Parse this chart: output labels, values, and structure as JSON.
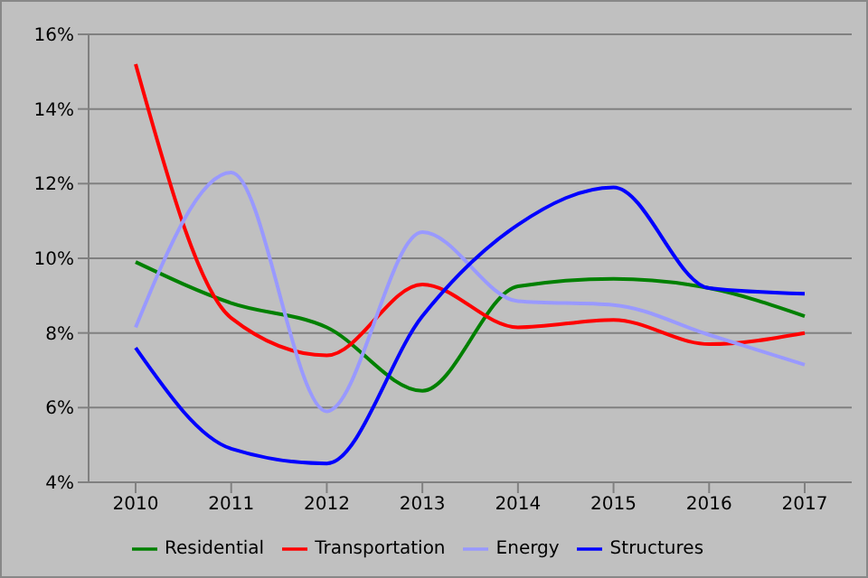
{
  "chart_data": {
    "type": "line",
    "categories": [
      "2010",
      "2011",
      "2012",
      "2013",
      "2014",
      "2015",
      "2016",
      "2017"
    ],
    "series": [
      {
        "name": "Residential",
        "color": "#008000",
        "values": [
          9.9,
          8.8,
          8.15,
          6.45,
          9.25,
          9.45,
          9.2,
          8.45
        ]
      },
      {
        "name": "Transportation",
        "color": "#ff0000",
        "values": [
          15.2,
          8.4,
          7.4,
          9.3,
          8.15,
          8.35,
          7.7,
          8.0
        ]
      },
      {
        "name": "Energy",
        "color": "#9999ff",
        "values": [
          8.15,
          12.3,
          5.9,
          10.7,
          8.85,
          8.75,
          7.95,
          7.15
        ]
      },
      {
        "name": "Structures",
        "color": "#0000ff",
        "values": [
          7.6,
          4.9,
          4.5,
          8.45,
          10.9,
          11.9,
          9.2,
          9.05
        ]
      }
    ],
    "ylim": [
      4,
      16
    ],
    "yticks": [
      {
        "value": 4,
        "label": "4%"
      },
      {
        "value": 6,
        "label": "6%"
      },
      {
        "value": 8,
        "label": "8%"
      },
      {
        "value": 10,
        "label": "10%"
      },
      {
        "value": 12,
        "label": "12%"
      },
      {
        "value": 14,
        "label": "14%"
      },
      {
        "value": 16,
        "label": "16%"
      }
    ],
    "grid": "y",
    "legend": "bottom",
    "marker": "none",
    "line_style": "solid"
  }
}
